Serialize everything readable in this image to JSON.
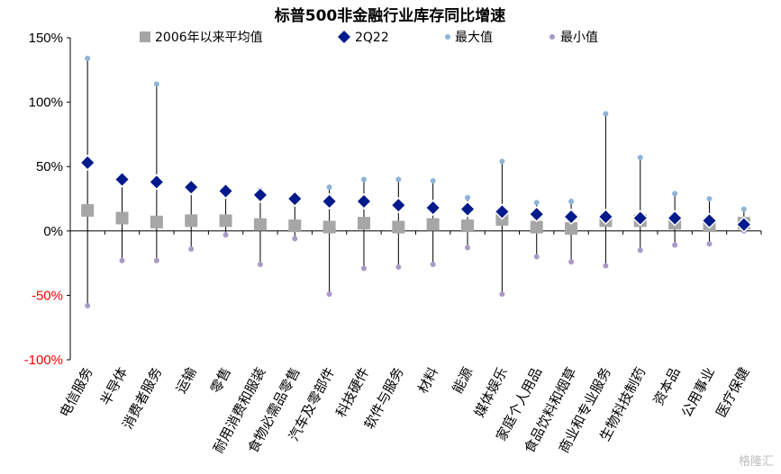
{
  "chart_data": {
    "type": "scatter",
    "title": "标普500非金融行业库存同比增速",
    "categories": [
      "电信服务",
      "半导体",
      "消费者服务",
      "运输",
      "零售",
      "耐用消费和服装",
      "食物必需品零售",
      "汽车及零部件",
      "科技硬件",
      "软件与服务",
      "材料",
      "能源",
      "媒体娱乐",
      "家庭个人用品",
      "食品饮料和烟草",
      "商业和专业服务",
      "生物科技制药",
      "资本品",
      "公用事业",
      "医疗保健"
    ],
    "ylim": [
      -100,
      150
    ],
    "yticks": [
      -100,
      -50,
      0,
      50,
      100,
      150
    ],
    "ytick_labels": [
      "-100%",
      "-50%",
      "0%",
      "50%",
      "100%",
      "150%"
    ],
    "negative_tick_color": "#ff0000",
    "legend_position": "top",
    "series": [
      {
        "name": "2006年以来平均值",
        "marker": "square",
        "color": "#a6a6a6",
        "values": [
          16,
          10,
          7,
          8,
          8,
          5,
          4,
          3,
          6,
          3,
          5,
          4,
          9,
          3,
          2,
          8,
          8,
          6,
          4,
          6
        ]
      },
      {
        "name": "2Q22",
        "marker": "diamond",
        "color": "#001a8c",
        "values": [
          53,
          40,
          38,
          34,
          31,
          28,
          25,
          23,
          23,
          20,
          18,
          17,
          15,
          13,
          11,
          11,
          10,
          10,
          8,
          5
        ]
      },
      {
        "name": "最大值",
        "marker": "dot",
        "color": "#8fb3d9",
        "values": [
          134,
          37,
          114,
          37,
          33,
          32,
          28,
          34,
          40,
          40,
          39,
          26,
          54,
          22,
          23,
          91,
          57,
          29,
          25,
          17
        ]
      },
      {
        "name": "最小值",
        "marker": "dot",
        "color": "#a99ac9",
        "values": [
          -58,
          -23,
          -23,
          -14,
          -3,
          -26,
          -6,
          -49,
          -29,
          -28,
          -26,
          -13,
          -49,
          -20,
          -24,
          -27,
          -15,
          -11,
          -10,
          0
        ]
      }
    ]
  },
  "watermark": "格隆汇"
}
